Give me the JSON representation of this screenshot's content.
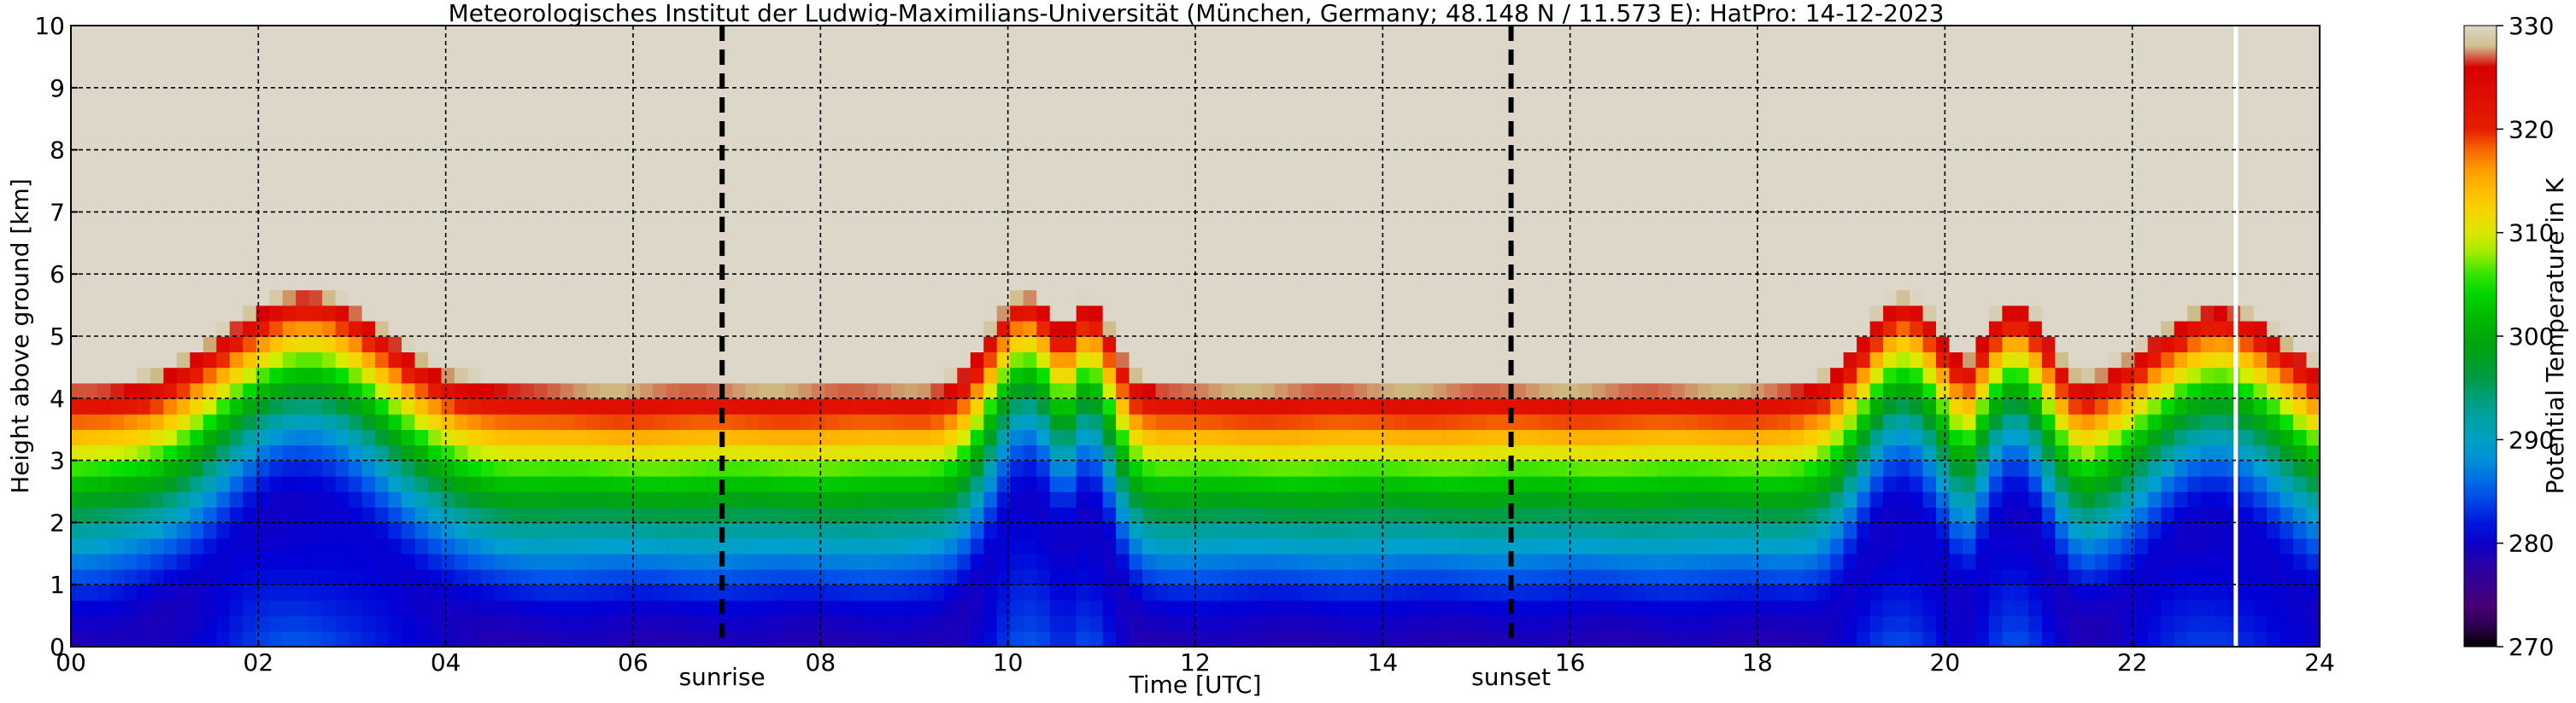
{
  "chart_data": {
    "type": "heatmap",
    "title": "Meteorologisches Institut der Ludwig-Maximilians-Universität (München, Germany; 48.148 N / 11.573 E):    HatPro: 14-12-2023",
    "xlabel": "Time [UTC]",
    "ylabel": "Height above ground [km]",
    "xlim": [
      0,
      24
    ],
    "ylim": [
      0,
      10
    ],
    "x_ticks": [
      "00",
      "02",
      "04",
      "06",
      "08",
      "10",
      "12",
      "14",
      "16",
      "18",
      "20",
      "22",
      "24"
    ],
    "y_ticks": [
      "0",
      "1",
      "2",
      "3",
      "4",
      "5",
      "6",
      "7",
      "8",
      "9",
      "10"
    ],
    "grid": true,
    "colorbar": {
      "label": "Potential Temperature in K",
      "range": [
        270,
        330
      ],
      "ticks": [
        "270",
        "280",
        "290",
        "300",
        "310",
        "320",
        "330"
      ]
    },
    "markers": [
      {
        "label": "sunrise",
        "x": 6.95
      },
      {
        "label": "sunset",
        "x": 15.37
      }
    ],
    "missing_data_at_x": 23.1,
    "profile_description": "potential temperature increasing with height; deep mixing (green/yellow extending to ~3 km) near 01.8-03.2, 09.7-11.2, 19-20.1, 20.5-21.3, 22-23.8 UTC",
    "events": [
      {
        "center": 2.5,
        "width": 1.1,
        "depth": 2.9
      },
      {
        "center": 10.2,
        "width": 0.5,
        "depth": 2.9
      },
      {
        "center": 10.85,
        "width": 0.35,
        "depth": 2.6
      },
      {
        "center": 19.55,
        "width": 0.55,
        "depth": 2.7
      },
      {
        "center": 20.75,
        "width": 0.45,
        "depth": 2.6
      },
      {
        "center": 22.9,
        "width": 0.9,
        "depth": 2.4
      }
    ]
  }
}
